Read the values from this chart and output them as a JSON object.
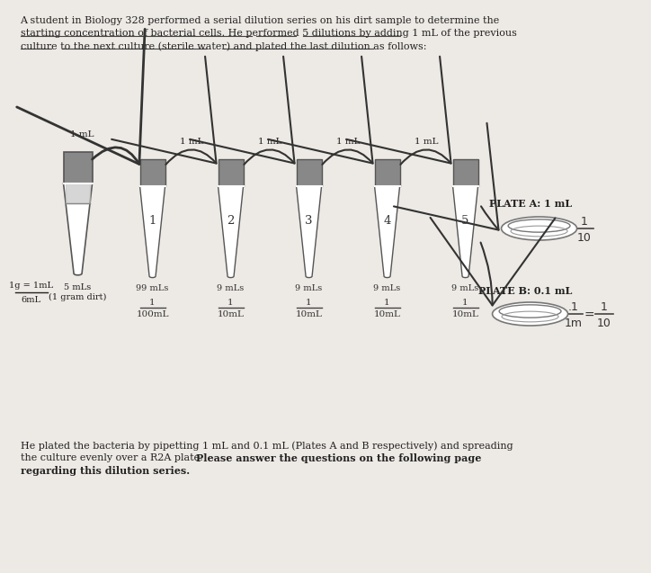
{
  "bg_color": "#ede9e4",
  "title_line1": "A student in Biology 328 performed a serial dilution series on his dirt sample to determine the",
  "title_line2": "starting concentration of bacterial cells. He performed 5 dilutions by adding 1 mL of the previous",
  "title_line3": "culture to the next culture (sterile water) and plated the last dilution as follows:",
  "footer_line1": "He plated the bacteria by pipetting 1 mL and 0.1 mL (Plates A and B respectively) and spreading",
  "footer_line2_normal": "the culture evenly over a R2A plate. ",
  "footer_line2_bold": "Please answer the questions on the following page",
  "footer_line3": "regarding this dilution series.",
  "tube_numbers": [
    "1",
    "2",
    "3",
    "4",
    "5"
  ],
  "tube_vol_labels": [
    "99 mLs",
    "9 mLs",
    "9 mLs",
    "9 mLs",
    "9 mLs"
  ],
  "dil_tops": [
    "1",
    "1",
    "1",
    "1",
    "1"
  ],
  "dil_bots": [
    "100mL",
    "10mL",
    "10mL",
    "10mL",
    "10mL"
  ],
  "arrow_labels": [
    "1 mL",
    "1 mL",
    "1 mL",
    "1 mL"
  ],
  "src_arrow_label": "1 mL",
  "src_vol_label": "5 mLs\n(1 gram dirt)",
  "src_frac_top": "1g = 1mL",
  "src_frac_bot": "6mL",
  "plate_a_label": "PLATE A: 1 mL",
  "plate_b_label": "PLATE B: 0.1 mL",
  "tube_gray": "#888888",
  "tube_edge": "#555555",
  "arrow_color": "#333333",
  "text_color": "#222222",
  "underline_color": "#444444"
}
